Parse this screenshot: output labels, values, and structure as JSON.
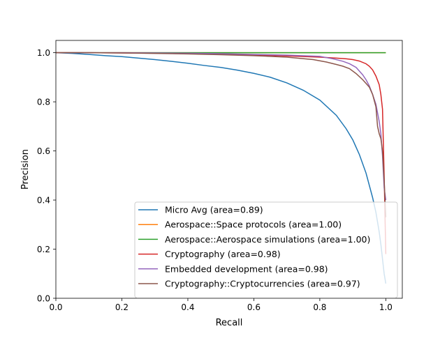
{
  "chart_data": {
    "type": "line",
    "title": "",
    "xlabel": "Recall",
    "ylabel": "Precision",
    "xlim": [
      0.0,
      1.05
    ],
    "ylim": [
      0.0,
      1.05
    ],
    "xticks": [
      0.0,
      0.2,
      0.4,
      0.6,
      0.8,
      1.0
    ],
    "xtick_labels": [
      "0.0",
      "0.2",
      "0.4",
      "0.6",
      "0.8",
      "1.0"
    ],
    "yticks": [
      0.0,
      0.2,
      0.4,
      0.6,
      0.8,
      1.0
    ],
    "ytick_labels": [
      "0.0",
      "0.2",
      "0.4",
      "0.6",
      "0.8",
      "1.0"
    ],
    "grid": false,
    "legend_position": "lower right",
    "series": [
      {
        "name": "Micro Avg (area=0.89)",
        "color": "#1f77b4",
        "x": [
          0.0,
          0.05,
          0.1,
          0.15,
          0.2,
          0.25,
          0.3,
          0.35,
          0.4,
          0.45,
          0.5,
          0.55,
          0.6,
          0.65,
          0.7,
          0.75,
          0.8,
          0.85,
          0.88,
          0.9,
          0.92,
          0.94,
          0.95,
          0.96,
          0.97,
          0.975,
          0.98,
          0.985,
          0.99,
          0.995,
          1.0
        ],
        "y": [
          1.0,
          0.997,
          0.993,
          0.988,
          0.984,
          0.978,
          0.972,
          0.965,
          0.957,
          0.948,
          0.94,
          0.929,
          0.916,
          0.9,
          0.877,
          0.847,
          0.807,
          0.745,
          0.69,
          0.645,
          0.585,
          0.51,
          0.46,
          0.41,
          0.35,
          0.31,
          0.27,
          0.22,
          0.16,
          0.1,
          0.06
        ]
      },
      {
        "name": "Aerospace::Space protocols (area=1.00)",
        "color": "#ff7f0e",
        "x": [
          0.0,
          1.0
        ],
        "y": [
          1.0,
          1.0
        ]
      },
      {
        "name": "Aerospace::Aerospace simulations (area=1.00)",
        "color": "#2ca02c",
        "x": [
          0.0,
          1.0
        ],
        "y": [
          1.0,
          1.0
        ]
      },
      {
        "name": "Cryptography (area=0.98)",
        "color": "#d62728",
        "x": [
          0.0,
          0.1,
          0.2,
          0.3,
          0.4,
          0.5,
          0.6,
          0.7,
          0.8,
          0.85,
          0.88,
          0.9,
          0.92,
          0.94,
          0.95,
          0.96,
          0.97,
          0.98,
          0.985,
          0.99,
          0.995,
          1.0
        ],
        "y": [
          1.0,
          1.0,
          0.999,
          0.998,
          0.996,
          0.994,
          0.991,
          0.987,
          0.982,
          0.978,
          0.975,
          0.972,
          0.966,
          0.955,
          0.945,
          0.93,
          0.905,
          0.87,
          0.83,
          0.77,
          0.5,
          0.18
        ]
      },
      {
        "name": "Embedded development (area=0.98)",
        "color": "#9467bd",
        "x": [
          0.0,
          0.1,
          0.2,
          0.3,
          0.4,
          0.5,
          0.6,
          0.7,
          0.8,
          0.84,
          0.87,
          0.89,
          0.91,
          0.93,
          0.94,
          0.95,
          0.96,
          0.97,
          0.98,
          0.985,
          0.99,
          0.995,
          1.0
        ],
        "y": [
          1.0,
          1.0,
          1.0,
          0.999,
          0.998,
          0.996,
          0.993,
          0.99,
          0.985,
          0.975,
          0.965,
          0.955,
          0.94,
          0.91,
          0.89,
          0.865,
          0.83,
          0.79,
          0.72,
          0.67,
          0.58,
          0.45,
          0.4
        ]
      },
      {
        "name": "Cryptography::Cryptocurrencies (area=0.97)",
        "color": "#8c564b",
        "x": [
          0.0,
          0.1,
          0.2,
          0.3,
          0.4,
          0.5,
          0.6,
          0.7,
          0.78,
          0.82,
          0.85,
          0.87,
          0.89,
          0.91,
          0.93,
          0.95,
          0.96,
          0.97,
          0.975,
          0.98,
          0.985,
          0.99,
          0.995,
          1.0
        ],
        "y": [
          1.0,
          1.0,
          0.999,
          0.997,
          0.995,
          0.992,
          0.988,
          0.982,
          0.972,
          0.962,
          0.952,
          0.945,
          0.935,
          0.915,
          0.89,
          0.86,
          0.83,
          0.78,
          0.7,
          0.67,
          0.65,
          0.6,
          0.48,
          0.33
        ]
      }
    ]
  }
}
